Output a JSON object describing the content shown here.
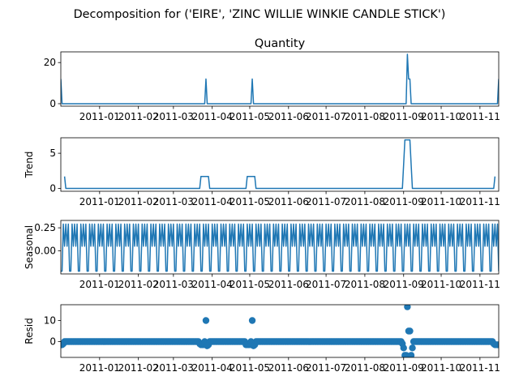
{
  "figure": {
    "suptitle": "Decomposition for ('EIRE', 'ZINC WILLIE WINKIE  CANDLE STICK')",
    "line_color": "#1f77b4"
  },
  "chart_data": [
    {
      "type": "line",
      "panel": "observed",
      "title": "Quantity",
      "ylabel": "",
      "ylim": [
        -1.2,
        25.2
      ],
      "yticks": [
        0,
        20
      ],
      "ytick_labels": [
        "0",
        "20"
      ],
      "x_range": [
        "2010-12-01",
        "2011-11-16"
      ],
      "xtick_dates": [
        "2011-01-01",
        "2011-02-01",
        "2011-03-01",
        "2011-04-01",
        "2011-05-01",
        "2011-06-01",
        "2011-07-01",
        "2011-08-01",
        "2011-09-01",
        "2011-10-01",
        "2011-11-01"
      ],
      "xtick_labels": [
        "2011-01",
        "2011-02",
        "2011-03",
        "2011-04",
        "2011-05",
        "2011-06",
        "2011-07",
        "2011-08",
        "2011-09",
        "2011-10",
        "2011-11"
      ],
      "baseline": 0,
      "x": [
        "2010-12-01",
        "2010-12-02",
        "2011-03-26",
        "2011-03-27",
        "2011-03-28",
        "2011-05-02",
        "2011-05-03",
        "2011-05-04",
        "2011-09-03",
        "2011-09-04",
        "2011-09-05",
        "2011-09-06",
        "2011-09-07",
        "2011-11-15",
        "2011-11-16"
      ],
      "y": [
        12,
        0,
        0,
        12,
        0,
        0,
        12,
        0,
        0,
        24,
        12,
        12,
        0,
        0,
        12
      ]
    },
    {
      "type": "line",
      "panel": "trend",
      "title": "",
      "ylabel": "Trend",
      "ylim": [
        -0.4,
        7.2
      ],
      "yticks": [
        0,
        5
      ],
      "ytick_labels": [
        "0",
        "5"
      ],
      "x_range": [
        "2010-12-01",
        "2011-11-16"
      ],
      "xtick_dates": [
        "2011-01-01",
        "2011-02-01",
        "2011-03-01",
        "2011-04-01",
        "2011-05-01",
        "2011-06-01",
        "2011-07-01",
        "2011-08-01",
        "2011-09-01",
        "2011-10-01",
        "2011-11-01"
      ],
      "xtick_labels": [
        "2011-01",
        "2011-02",
        "2011-03",
        "2011-04",
        "2011-05",
        "2011-06",
        "2011-07",
        "2011-08",
        "2011-09",
        "2011-10",
        "2011-11"
      ],
      "x": [
        "2010-12-04",
        "2010-12-05",
        "2011-03-22",
        "2011-03-23",
        "2011-03-29",
        "2011-03-30",
        "2011-04-28",
        "2011-04-29",
        "2011-05-05",
        "2011-05-06",
        "2011-08-31",
        "2011-09-01",
        "2011-09-02",
        "2011-09-06",
        "2011-09-07",
        "2011-09-08",
        "2011-11-12",
        "2011-11-13"
      ],
      "y": [
        1.7,
        0,
        0,
        1.7,
        1.7,
        0,
        0,
        1.7,
        1.7,
        0,
        0,
        3.4,
        6.9,
        6.9,
        3.4,
        0,
        0,
        1.7
      ]
    },
    {
      "type": "line",
      "panel": "seasonal",
      "title": "",
      "ylabel": "Seasonal",
      "ylim": [
        -0.25,
        0.33
      ],
      "yticks": [
        0.0,
        0.25
      ],
      "ytick_labels": [
        "0.00",
        "0.25"
      ],
      "x_range": [
        "2010-12-01",
        "2011-11-16"
      ],
      "xtick_dates": [
        "2011-01-01",
        "2011-02-01",
        "2011-03-01",
        "2011-04-01",
        "2011-05-01",
        "2011-06-01",
        "2011-07-01",
        "2011-08-01",
        "2011-09-01",
        "2011-10-01",
        "2011-11-01"
      ],
      "xtick_labels": [
        "2011-01",
        "2011-02",
        "2011-03",
        "2011-04",
        "2011-05",
        "2011-06",
        "2011-07",
        "2011-08",
        "2011-09",
        "2011-10",
        "2011-11"
      ],
      "period_days": 7,
      "weekly_pattern": [
        -0.22,
        -0.22,
        0.29,
        0.05,
        0.29,
        0.05,
        0.29
      ]
    },
    {
      "type": "scatter",
      "panel": "resid",
      "title": "",
      "ylabel": "Resid",
      "ylim": [
        -7.5,
        17.5
      ],
      "yticks": [
        0,
        10
      ],
      "ytick_labels": [
        "0",
        "10"
      ],
      "x_range": [
        "2010-12-01",
        "2011-11-16"
      ],
      "xtick_dates": [
        "2011-01-01",
        "2011-02-01",
        "2011-03-01",
        "2011-04-01",
        "2011-05-01",
        "2011-06-01",
        "2011-07-01",
        "2011-08-01",
        "2011-09-01",
        "2011-10-01",
        "2011-11-01"
      ],
      "xtick_labels": [
        "2011-01",
        "2011-02",
        "2011-03",
        "2011-04",
        "2011-05",
        "2011-06",
        "2011-07",
        "2011-08",
        "2011-09",
        "2011-10",
        "2011-11"
      ],
      "default_value": 0,
      "points": [
        {
          "x": "2010-12-01",
          "y": -1.5
        },
        {
          "x": "2010-12-02",
          "y": -1.5
        },
        {
          "x": "2010-12-03",
          "y": -1.0
        },
        {
          "x": "2011-03-22",
          "y": -1.0
        },
        {
          "x": "2011-03-23",
          "y": -1.5
        },
        {
          "x": "2011-03-24",
          "y": -1.5
        },
        {
          "x": "2011-03-25",
          "y": -1.5
        },
        {
          "x": "2011-03-27",
          "y": 10
        },
        {
          "x": "2011-03-28",
          "y": -2.0
        },
        {
          "x": "2011-03-29",
          "y": -1.5
        },
        {
          "x": "2011-04-28",
          "y": -1.5
        },
        {
          "x": "2011-04-29",
          "y": -1.5
        },
        {
          "x": "2011-04-30",
          "y": -1.5
        },
        {
          "x": "2011-05-01",
          "y": -1.5
        },
        {
          "x": "2011-05-03",
          "y": 10
        },
        {
          "x": "2011-05-04",
          "y": -2.0
        },
        {
          "x": "2011-05-05",
          "y": -1.5
        },
        {
          "x": "2011-08-31",
          "y": -1.0
        },
        {
          "x": "2011-09-01",
          "y": -3.0
        },
        {
          "x": "2011-09-02",
          "y": -6.5
        },
        {
          "x": "2011-09-03",
          "y": -6.5
        },
        {
          "x": "2011-09-04",
          "y": 16.5
        },
        {
          "x": "2011-09-05",
          "y": 5.0
        },
        {
          "x": "2011-09-06",
          "y": 5.0
        },
        {
          "x": "2011-09-07",
          "y": -6.5
        },
        {
          "x": "2011-09-08",
          "y": -3.0
        },
        {
          "x": "2011-11-12",
          "y": -1.0
        },
        {
          "x": "2011-11-13",
          "y": -1.5
        },
        {
          "x": "2011-11-14",
          "y": -1.5
        },
        {
          "x": "2011-11-15",
          "y": -1.5
        },
        {
          "x": "2011-11-16",
          "y": -1.5
        }
      ]
    }
  ]
}
